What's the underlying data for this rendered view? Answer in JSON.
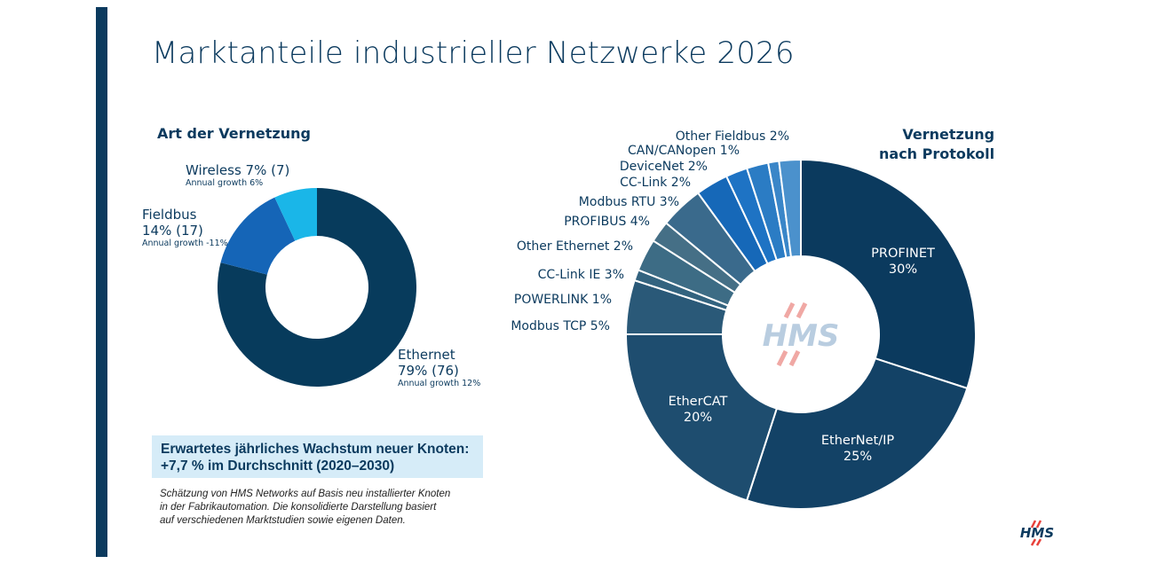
{
  "title": "Marktanteile industrieller Netzwerke 2026",
  "colors": {
    "accent": "#0b3a5e",
    "ethernet": "#073b5c",
    "fieldbus": "#1565b7",
    "wireless": "#1ab6e8",
    "callout_bg": "#d6ecf8",
    "logo_red": "#e8413a"
  },
  "left_chart_title": "Art der Vernetzung",
  "right_chart_title_line1": "Vernetzung",
  "right_chart_title_line2": "nach Protokoll",
  "left_labels": {
    "wireless_main": "Wireless 7% (7)",
    "wireless_sub": "Annual growth 6%",
    "fieldbus_main1": "Fieldbus",
    "fieldbus_main2": "14% (17)",
    "fieldbus_sub": "Annual growth -11%",
    "ethernet_main1": "Ethernet",
    "ethernet_main2": "79% (76)",
    "ethernet_sub": "Annual growth 12%"
  },
  "callout_line1": "Erwartetes jährliches Wachstum neuer Knoten:",
  "callout_line2": "+7,7 % im Durchschnitt (2020–2030)",
  "note_line1": "Schätzung von HMS Networks auf Basis neu installierter Knoten",
  "note_line2": "in der Fabrikautomation. Die konsolidierte Darstellung basiert",
  "note_line3": "auf verschiedenen Marktstudien sowie eigenen Daten.",
  "logo_text": "HMS",
  "chart_data": [
    {
      "type": "pie",
      "title": "Art der Vernetzung",
      "categories": [
        "Ethernet",
        "Fieldbus",
        "Wireless"
      ],
      "values": [
        79,
        14,
        7
      ],
      "counts": [
        76,
        17,
        7
      ],
      "annual_growth": [
        "12%",
        "-11%",
        "6%"
      ],
      "unit": "%",
      "donut": true
    },
    {
      "type": "pie",
      "title": "Vernetzung nach Protokoll",
      "categories": [
        "PROFINET",
        "EtherNet/IP",
        "EtherCAT",
        "Modbus TCP",
        "POWERLINK",
        "CC-Link IE",
        "Other Ethernet",
        "PROFIBUS",
        "Modbus RTU",
        "CC-Link",
        "DeviceNet",
        "CAN/CANopen",
        "Other Fieldbus"
      ],
      "values": [
        30,
        25,
        20,
        5,
        1,
        3,
        2,
        4,
        3,
        2,
        2,
        1,
        2
      ],
      "labels": [
        "PROFINET",
        "30%",
        "EtherNet/IP",
        "25%",
        "EtherCAT",
        "20%",
        "Modbus TCP 5%",
        "POWERLINK 1%",
        "CC-Link IE 3%",
        "Other Ethernet 2%",
        "PROFIBUS 4%",
        "Modbus RTU 3%",
        "CC-Link 2%",
        "DeviceNet 2%",
        "CAN/CANopen 1%",
        "Other Fieldbus 2%"
      ],
      "unit": "%",
      "donut": true
    }
  ]
}
